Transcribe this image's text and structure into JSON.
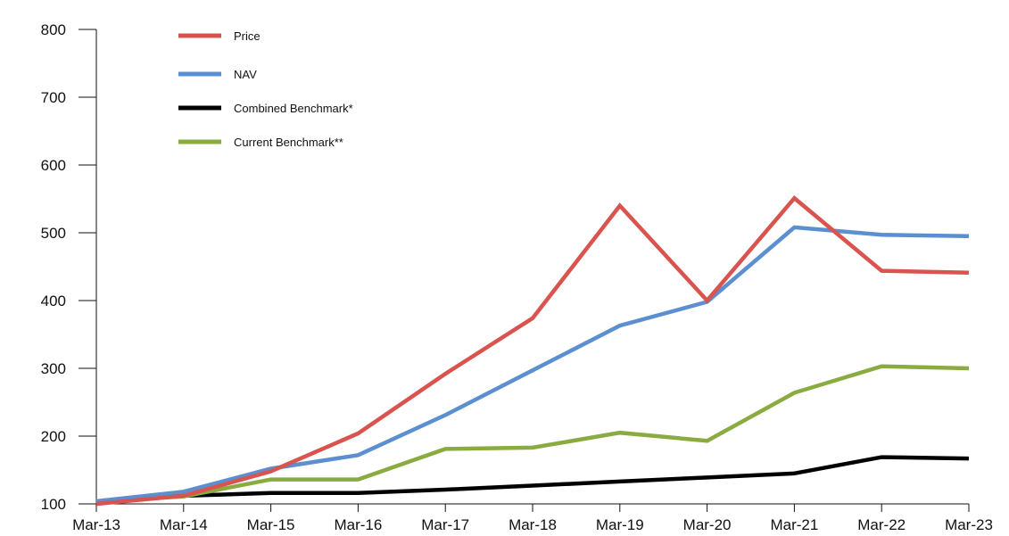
{
  "chart_data": {
    "type": "line",
    "title": "",
    "xlabel": "",
    "ylabel": "",
    "categories": [
      "Mar-13",
      "Mar-14",
      "Mar-15",
      "Mar-16",
      "Mar-17",
      "Mar-18",
      "Mar-19",
      "Mar-20",
      "Mar-21",
      "Mar-22",
      "Mar-23"
    ],
    "ylim": [
      100,
      800
    ],
    "yticks": [
      100,
      200,
      300,
      400,
      500,
      600,
      700,
      800
    ],
    "grid": false,
    "legend_position": "top-left",
    "series": [
      {
        "name": "Price",
        "color": "#d9534f",
        "values": [
          100,
          112,
          148,
          204,
          292,
          374,
          540,
          400,
          551,
          444,
          441
        ]
      },
      {
        "name": "NAV",
        "color": "#5b8fd0",
        "values": [
          104,
          118,
          152,
          172,
          231,
          297,
          363,
          398,
          508,
          497,
          495
        ]
      },
      {
        "name": "Combined Benchmark*",
        "color": "#000000",
        "values": [
          103,
          112,
          116,
          116,
          121,
          127,
          133,
          139,
          145,
          169,
          167
        ]
      },
      {
        "name": "Current Benchmark**",
        "color": "#8aab3f",
        "values": [
          103,
          111,
          136,
          136,
          181,
          183,
          205,
          193,
          264,
          303,
          300
        ]
      }
    ]
  }
}
